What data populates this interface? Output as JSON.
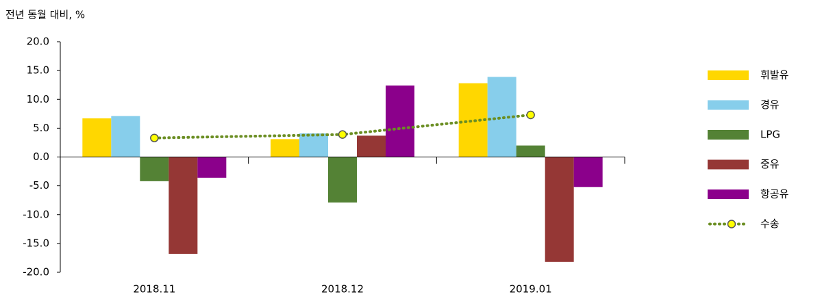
{
  "chart_data": {
    "type": "bar",
    "y_axis_label": "전년 동월 대비, %",
    "categories": [
      "2018.11",
      "2018.12",
      "2019.01"
    ],
    "series": [
      {
        "name": "휘발유",
        "color": "#FFD700",
        "values": [
          6.7,
          3.1,
          12.8
        ]
      },
      {
        "name": "경유",
        "color": "#87CEEB",
        "values": [
          7.1,
          4.1,
          13.9
        ]
      },
      {
        "name": "LPG",
        "color": "#548235",
        "values": [
          -4.2,
          -7.9,
          2.0
        ]
      },
      {
        "name": "중유",
        "color": "#953735",
        "values": [
          -16.8,
          3.7,
          -18.2
        ]
      },
      {
        "name": "항공유",
        "color": "#8B008B",
        "values": [
          -3.6,
          12.4,
          -5.2
        ]
      },
      {
        "name": "수송",
        "color": "#6B8E23",
        "type": "line",
        "marker_color": "#FFFF00",
        "values": [
          3.3,
          3.9,
          7.3
        ]
      }
    ],
    "ylim": [
      -20,
      20
    ],
    "yticks": [
      {
        "value": 20,
        "label": "20.0"
      },
      {
        "value": 15,
        "label": "15.0"
      },
      {
        "value": 10,
        "label": "10.0"
      },
      {
        "value": 5,
        "label": "5.0"
      },
      {
        "value": 0,
        "label": "0.0"
      },
      {
        "value": -5,
        "label": "-5.0"
      },
      {
        "value": -10,
        "label": "-10.0"
      },
      {
        "value": -15,
        "label": "-15.0"
      },
      {
        "value": -20,
        "label": "-20.0"
      }
    ],
    "legend": "right"
  }
}
